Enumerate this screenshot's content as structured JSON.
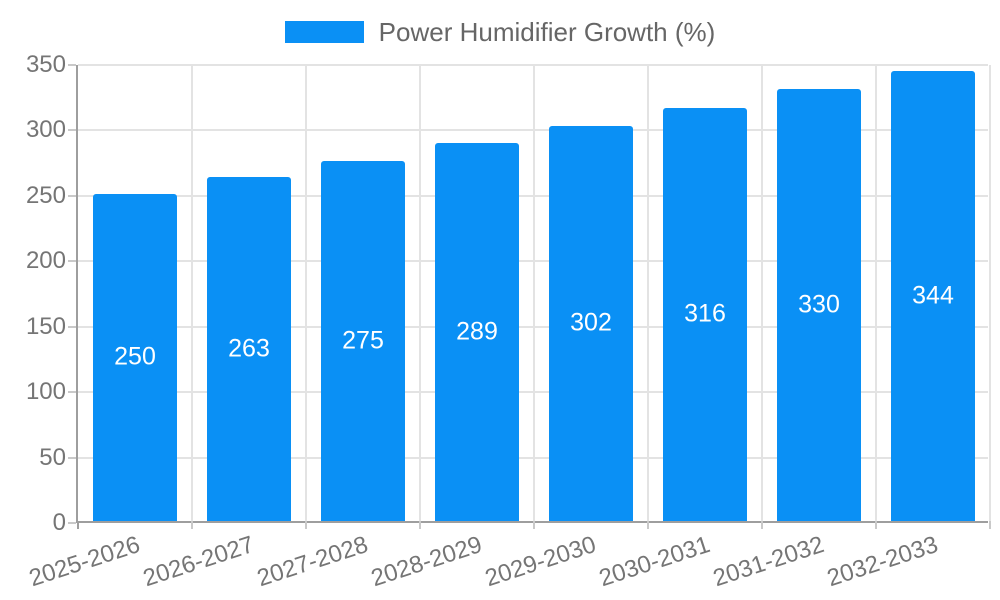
{
  "legend": {
    "items": [
      {
        "label": "Power Humidifier Growth (%)",
        "color": "#0a90f5"
      }
    ],
    "position": "top"
  },
  "chart_data": {
    "type": "bar",
    "title": "",
    "xlabel": "",
    "ylabel": "",
    "categories": [
      "2025-2026",
      "2026-2027",
      "2027-2028",
      "2028-2029",
      "2029-2030",
      "2030-2031",
      "2031-2032",
      "2032-2033"
    ],
    "series": [
      {
        "name": "Power Humidifier Growth (%)",
        "values": [
          250,
          263,
          275,
          289,
          302,
          316,
          330,
          344
        ]
      }
    ],
    "value_labels": [
      "250",
      "263",
      "275",
      "289",
      "302",
      "316",
      "330",
      "344"
    ],
    "value_labels_position": "center-inside-bar",
    "yticks": [
      0,
      50,
      100,
      150,
      200,
      250,
      300,
      350
    ],
    "ylim": [
      0,
      350
    ],
    "grid": true,
    "x_label_rotation_deg": -18,
    "legend_position": "top"
  },
  "colors": {
    "bar": "#0a90f5",
    "grid": "#e3e3e3",
    "axis": "#9e9e9e",
    "tick": "#c9c9c9",
    "tick_text": "#757575",
    "legend_text": "#666666",
    "value_text": "#ffffff",
    "background": "#ffffff"
  }
}
